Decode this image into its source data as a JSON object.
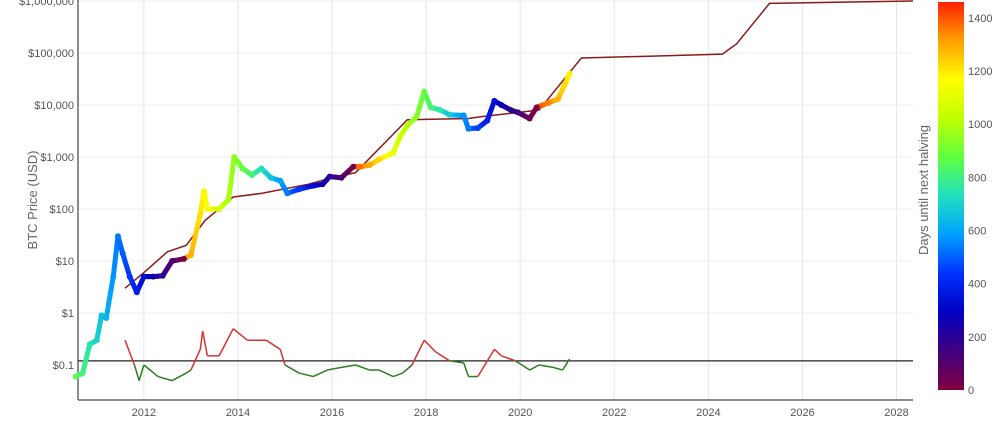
{
  "chart_data": {
    "type": "scatter",
    "ylabel": "BTC Price (USD)",
    "y_scale": "log",
    "ylim": [
      0.02,
      1000000
    ],
    "xlim": [
      2010.6,
      2028.35
    ],
    "x_ticks": [
      "2012",
      "2014",
      "2016",
      "2018",
      "2020",
      "2022",
      "2024",
      "2026",
      "2028"
    ],
    "y_ticks": [
      "$0.1",
      "$1",
      "$10",
      "$100",
      "$1,000",
      "$10,000",
      "$100,000",
      "$1,000,000"
    ],
    "grid": true,
    "colorbar": {
      "title": "Days until next halving",
      "ticks": [
        "0",
        "200",
        "400",
        "600",
        "800",
        "1000",
        "1200",
        "1400"
      ],
      "range": [
        0,
        1460
      ],
      "colorscale": [
        "#800040",
        "#400080",
        "#0000c0",
        "#0030ff",
        "#00a0ff",
        "#20e0c0",
        "#60ff40",
        "#c0ff00",
        "#ffff00",
        "#ffa000",
        "#ff2000"
      ]
    },
    "series": [
      {
        "role": "price",
        "x": [
          2010.55,
          2010.7,
          2010.85,
          2011.0,
          2011.1,
          2011.2,
          2011.35,
          2011.45,
          2011.55,
          2011.7,
          2011.85,
          2012.0,
          2012.2,
          2012.4,
          2012.6,
          2012.85,
          2013.0,
          2013.2,
          2013.28,
          2013.35,
          2013.6,
          2013.8,
          2013.92,
          2014.0,
          2014.1,
          2014.3,
          2014.5,
          2014.7,
          2014.9,
          2015.05,
          2015.3,
          2015.6,
          2015.8,
          2015.95,
          2016.2,
          2016.45,
          2016.6,
          2016.8,
          2017.0,
          2017.3,
          2017.45,
          2017.6,
          2017.8,
          2017.96,
          2018.1,
          2018.3,
          2018.5,
          2018.8,
          2018.9,
          2019.1,
          2019.3,
          2019.45,
          2019.6,
          2019.8,
          2019.95,
          2020.2,
          2020.35,
          2020.6,
          2020.8,
          2020.95,
          2021.05
        ],
        "y": [
          0.06,
          0.07,
          0.25,
          0.3,
          0.9,
          0.8,
          5,
          30,
          14,
          5,
          2.5,
          5,
          5,
          5.2,
          10,
          11,
          13,
          80,
          220,
          100,
          100,
          150,
          1000,
          800,
          600,
          450,
          600,
          400,
          350,
          200,
          240,
          280,
          300,
          420,
          400,
          650,
          650,
          700,
          900,
          1200,
          2500,
          4000,
          6000,
          18000,
          9000,
          8000,
          6500,
          6300,
          3500,
          3600,
          5000,
          12000,
          10000,
          8000,
          7200,
          5500,
          9000,
          11000,
          13000,
          25000,
          40000
        ]
      },
      {
        "role": "model",
        "color": "#8b1a1a",
        "x": [
          2011.6,
          2012.0,
          2012.5,
          2012.9,
          2013.3,
          2013.9,
          2014.5,
          2015.5,
          2016.0,
          2016.5,
          2017.6,
          2018.9,
          2019.2,
          2020.4,
          2021.3,
          2024.3,
          2024.6,
          2025.3,
          2028.35
        ],
        "y": [
          3,
          6,
          15,
          20,
          60,
          170,
          200,
          300,
          400,
          500,
          5200,
          5500,
          6000,
          8000,
          80000,
          95000,
          150000,
          900000,
          1000000
        ]
      },
      {
        "role": "ratio",
        "threshold": 0.12,
        "above_color": "#d93030",
        "below_color": "#2e7d22",
        "x": [
          2011.6,
          2011.8,
          2011.9,
          2012.0,
          2012.3,
          2012.6,
          2012.9,
          2013.0,
          2013.2,
          2013.25,
          2013.35,
          2013.6,
          2013.9,
          2014.2,
          2014.6,
          2014.9,
          2015.0,
          2015.3,
          2015.6,
          2015.9,
          2016.2,
          2016.5,
          2016.8,
          2017.0,
          2017.3,
          2017.5,
          2017.7,
          2017.96,
          2018.2,
          2018.5,
          2018.8,
          2018.9,
          2019.1,
          2019.45,
          2019.6,
          2019.9,
          2020.2,
          2020.4,
          2020.7,
          2020.9,
          2021.05
        ],
        "y": [
          0.3,
          0.1,
          0.05,
          0.1,
          0.06,
          0.05,
          0.07,
          0.08,
          0.2,
          0.45,
          0.15,
          0.15,
          0.5,
          0.3,
          0.3,
          0.2,
          0.1,
          0.07,
          0.06,
          0.08,
          0.09,
          0.1,
          0.08,
          0.08,
          0.06,
          0.07,
          0.1,
          0.3,
          0.18,
          0.12,
          0.11,
          0.06,
          0.06,
          0.2,
          0.15,
          0.12,
          0.08,
          0.1,
          0.09,
          0.08,
          0.13
        ]
      }
    ]
  }
}
